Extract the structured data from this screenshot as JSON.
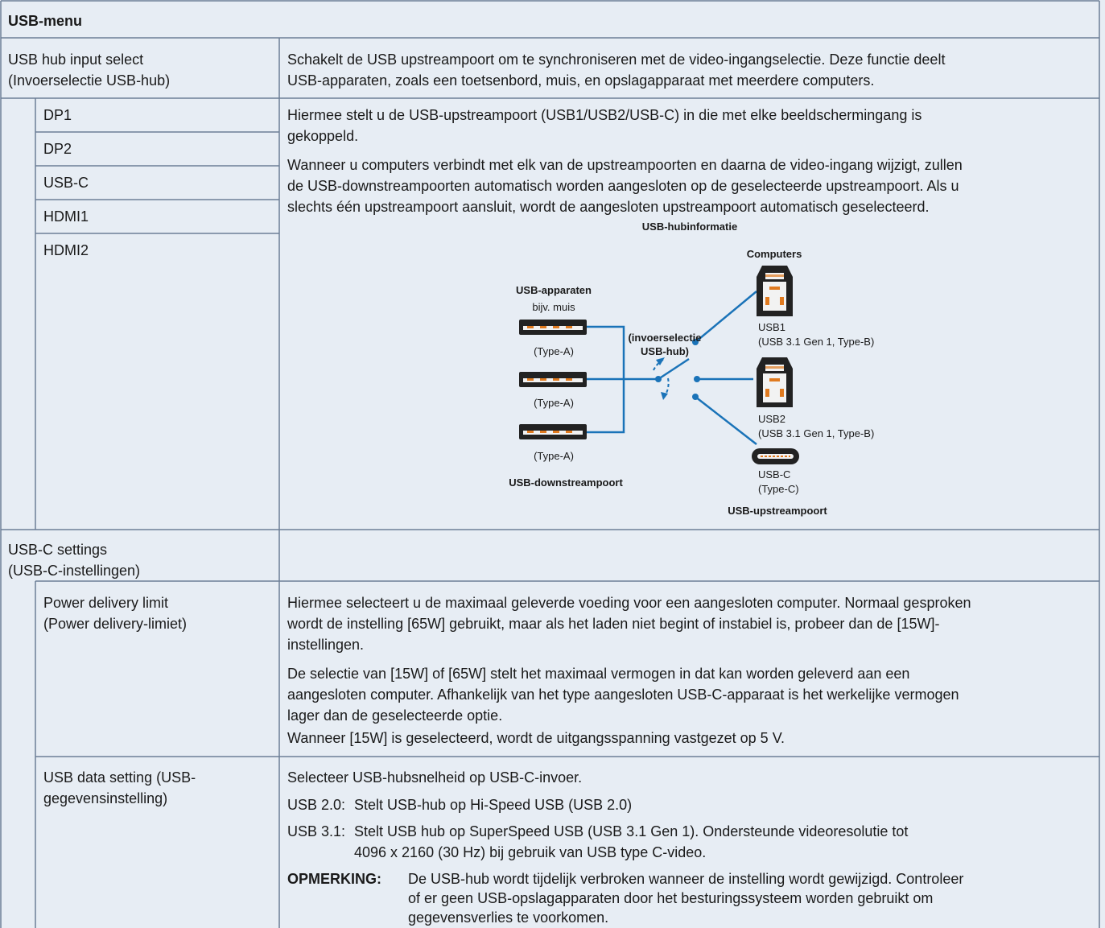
{
  "table": {
    "title": "USB-menu",
    "usb_hub_input_select": {
      "label": [
        "USB hub input select",
        "(Invoerselectie USB-hub)"
      ],
      "text": [
        "Schakelt de USB upstreampoort om te synchroniseren met de video-ingangselectie. Deze functie deelt",
        "USB-apparaten, zoals een toetsenbord, muis, en opslagapparaat met meerdere computers."
      ]
    },
    "inputs": {
      "options": [
        "DP1",
        "DP2",
        "USB-C",
        "HDMI1",
        "HDMI2"
      ],
      "paragraphs": [
        [
          "Hiermee stelt u de USB-upstreampoort (USB1/USB2/USB-C) in die met elke beeldschermingang is",
          "gekoppeld."
        ],
        [
          "Wanneer u computers verbindt met elk van de upstreampoorten en daarna de video-ingang wijzigt, zullen",
          "de USB-downstreampoorten automatisch worden aangesloten op de geselecteerde upstreampoort. Als u",
          "slechts één upstreampoort aansluit, wordt de aangesloten upstreampoort automatisch geselecteerd."
        ]
      ]
    },
    "diagram": {
      "title": "USB-hubinformatie",
      "computers": "Computers",
      "devices_title": "USB-apparaten",
      "devices_example": "bijv. muis",
      "type_a": [
        "(Type-A)",
        "(Type-A)",
        "(Type-A)"
      ],
      "switch": [
        "(invoerselectie",
        "USB-hub)"
      ],
      "usb1": [
        "USB1",
        "(USB 3.1 Gen 1, Type-B)"
      ],
      "usb2": [
        "USB2",
        "(USB 3.1 Gen 1, Type-B)"
      ],
      "usbc": [
        "USB-C",
        "(Type-C)"
      ],
      "upstream": "USB-upstreampoort",
      "downstream": "USB-downstreampoort"
    },
    "usb_c_settings": {
      "label": [
        "USB-C settings",
        "(USB-C-instellingen)"
      ]
    },
    "power_delivery_limit": {
      "label": [
        "Power delivery limit",
        "(Power delivery-limiet)"
      ],
      "paragraphs": [
        [
          "Hiermee selecteert u de maximaal geleverde voeding voor een aangesloten computer. Normaal gesproken",
          "wordt de instelling [65W] gebruikt, maar als het laden niet begint of instabiel is, probeer dan de [15W]-",
          "instellingen."
        ],
        [
          "De selectie van [15W] of [65W] stelt het maximaal vermogen in dat kan worden geleverd aan een",
          "aangesloten computer. Afhankelijk van het type aangesloten USB-C-apparaat is het werkelijke vermogen",
          "lager dan de geselecteerde optie."
        ],
        [
          "Wanneer [15W] is geselecteerd, wordt de uitgangsspanning vastgezet op 5 V."
        ]
      ]
    },
    "usb_data_setting": {
      "label": [
        "USB data setting (USB-",
        "gegevensinstelling)"
      ],
      "intro": "Selecteer USB-hubsnelheid op USB-C-invoer.",
      "options": [
        {
          "term": "USB 2.0:",
          "lines": [
            "Stelt USB-hub op Hi-Speed USB (USB 2.0)"
          ]
        },
        {
          "term": "USB 3.1:",
          "lines": [
            "Stelt USB hub op SuperSpeed USB (USB 3.1 Gen 1). Ondersteunde videoresolutie tot",
            "4096 x 2160 (30 Hz) bij gebruik van USB type C-video."
          ]
        }
      ],
      "note": {
        "term": "OPMERKING:",
        "lines": [
          "De USB-hub wordt tijdelijk verbroken wanneer de instelling wordt gewijzigd. Controleer",
          "of er geen USB-opslagapparaten door het besturingssysteem worden gebruikt om",
          "gegevensverlies te voorkomen."
        ]
      }
    }
  }
}
